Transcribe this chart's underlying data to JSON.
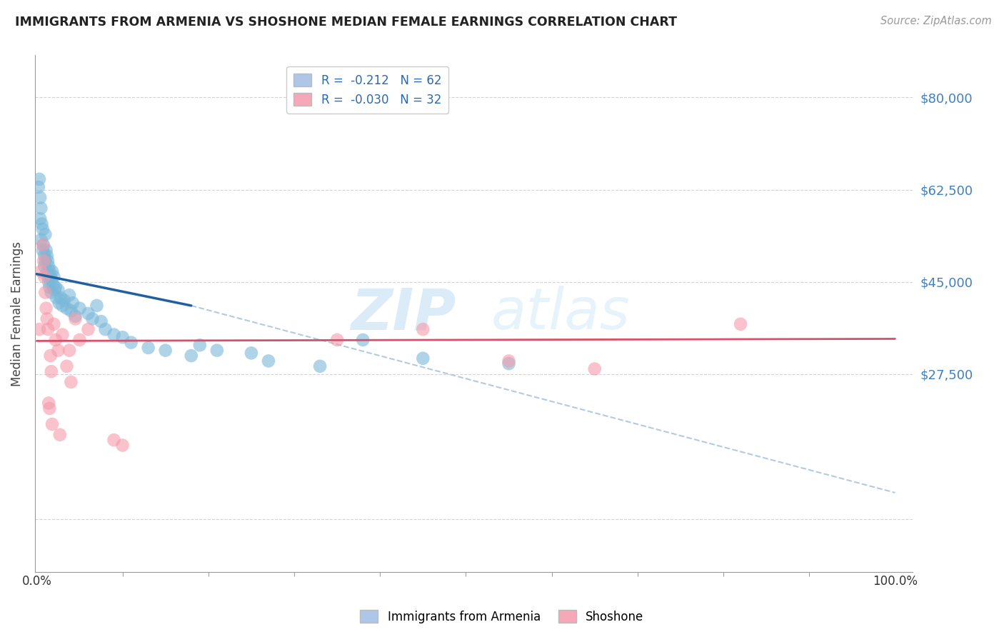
{
  "title": "IMMIGRANTS FROM ARMENIA VS SHOSHONE MEDIAN FEMALE EARNINGS CORRELATION CHART",
  "source": "Source: ZipAtlas.com",
  "ylabel": "Median Female Earnings",
  "yticks": [
    0,
    27500,
    45000,
    62500,
    80000
  ],
  "ytick_labels_right": [
    "",
    "$27,500",
    "$45,000",
    "$62,500",
    "$80,000"
  ],
  "ymax": 88000,
  "ymin": -10000,
  "xmin": -0.002,
  "xmax": 1.02,
  "blue_scatter_x": [
    0.002,
    0.003,
    0.004,
    0.004,
    0.005,
    0.005,
    0.006,
    0.007,
    0.007,
    0.008,
    0.009,
    0.009,
    0.01,
    0.01,
    0.011,
    0.012,
    0.012,
    0.013,
    0.013,
    0.014,
    0.014,
    0.015,
    0.015,
    0.016,
    0.017,
    0.017,
    0.018,
    0.019,
    0.02,
    0.021,
    0.022,
    0.023,
    0.025,
    0.026,
    0.028,
    0.03,
    0.032,
    0.035,
    0.038,
    0.04,
    0.042,
    0.045,
    0.05,
    0.06,
    0.065,
    0.07,
    0.075,
    0.08,
    0.09,
    0.1,
    0.11,
    0.13,
    0.15,
    0.18,
    0.19,
    0.21,
    0.25,
    0.27,
    0.33,
    0.38,
    0.45,
    0.55
  ],
  "blue_scatter_y": [
    63000,
    64500,
    61000,
    57000,
    59000,
    53000,
    56000,
    55000,
    51000,
    52000,
    50000,
    48000,
    54000,
    49000,
    51000,
    50000,
    47000,
    49000,
    46000,
    48000,
    45000,
    47000,
    44000,
    46000,
    45500,
    43000,
    47000,
    44500,
    46000,
    43500,
    44000,
    42000,
    43500,
    41000,
    42000,
    40500,
    41500,
    40000,
    42500,
    39500,
    41000,
    38500,
    40000,
    39000,
    38000,
    40500,
    37500,
    36000,
    35000,
    34500,
    33500,
    32500,
    32000,
    31000,
    33000,
    32000,
    31500,
    30000,
    29000,
    34000,
    30500,
    29500
  ],
  "pink_scatter_x": [
    0.003,
    0.005,
    0.007,
    0.008,
    0.009,
    0.01,
    0.011,
    0.012,
    0.013,
    0.014,
    0.015,
    0.016,
    0.017,
    0.018,
    0.02,
    0.022,
    0.025,
    0.027,
    0.03,
    0.035,
    0.038,
    0.04,
    0.045,
    0.05,
    0.06,
    0.09,
    0.1,
    0.35,
    0.45,
    0.55,
    0.65,
    0.82
  ],
  "pink_scatter_y": [
    36000,
    47000,
    52000,
    49000,
    46000,
    43000,
    40000,
    38000,
    36000,
    22000,
    21000,
    31000,
    28000,
    18000,
    37000,
    34000,
    32000,
    16000,
    35000,
    29000,
    32000,
    26000,
    38000,
    34000,
    36000,
    15000,
    14000,
    34000,
    36000,
    30000,
    28500,
    37000
  ],
  "blue_line_x0": 0.0,
  "blue_line_x1": 0.18,
  "blue_line_y0": 46500,
  "blue_line_y1": 40500,
  "pink_line_x0": 0.0,
  "pink_line_x1": 1.0,
  "pink_line_y0": 33800,
  "pink_line_y1": 34200,
  "dashed_line_x0": 0.18,
  "dashed_line_x1": 1.0,
  "dashed_line_y0": 40500,
  "dashed_line_y1": 5000,
  "blue_color": "#7ab8d9",
  "pink_color": "#f59aaa",
  "blue_line_color": "#2060a0",
  "pink_line_color": "#d9506a",
  "dashed_line_color": "#b0cce0",
  "bg_color": "#ffffff",
  "grid_color": "#c8c8c8",
  "title_color": "#222222",
  "axis_label_color": "#444444",
  "ytick_color": "#4080c0",
  "watermark": "ZIPatlas",
  "xtick_minor_positions": [
    0.1,
    0.2,
    0.3,
    0.4,
    0.5,
    0.6,
    0.7,
    0.8,
    0.9
  ]
}
